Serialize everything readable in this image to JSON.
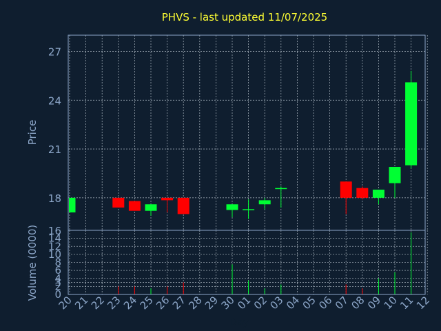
{
  "chart_data": {
    "type": "candlestick",
    "title": "PHVS - last updated 11/07/2025",
    "xlabel": "Day",
    "ylabel": "Price",
    "volume_label": "Volume (0000)",
    "ylim": [
      16,
      28
    ],
    "yticks": [
      16,
      18,
      21,
      24,
      27
    ],
    "volume_ylim": [
      0,
      16
    ],
    "volume_ticks": [
      0,
      2,
      3,
      4,
      6,
      8,
      10,
      12,
      14
    ],
    "x_labels": [
      "20",
      "21",
      "22",
      "23",
      "24",
      "25",
      "26",
      "27",
      "28",
      "29",
      "30",
      "01",
      "02",
      "03",
      "04",
      "05",
      "06",
      "07",
      "08",
      "09",
      "10",
      "11",
      "12"
    ],
    "up_color": "#00ff33",
    "down_color": "#ff0000",
    "background": "#0f1e2f",
    "grid": true,
    "candles": [
      {
        "day": "20",
        "open": 17.1,
        "close": 18.0,
        "high": 18.0,
        "low": 17.1,
        "volume": 0.0
      },
      {
        "day": "23",
        "open": 18.0,
        "close": 17.4,
        "high": 18.0,
        "low": 17.4,
        "volume": 2.0
      },
      {
        "day": "24",
        "open": 17.8,
        "close": 17.2,
        "high": 17.8,
        "low": 17.2,
        "volume": 2.0
      },
      {
        "day": "25",
        "open": 17.2,
        "close": 17.6,
        "high": 17.6,
        "low": 16.9,
        "volume": 1.5
      },
      {
        "day": "26",
        "open": 18.0,
        "close": 17.85,
        "high": 18.0,
        "low": 17.1,
        "volume": 2.0
      },
      {
        "day": "27",
        "open": 18.0,
        "close": 17.0,
        "high": 18.0,
        "low": 17.0,
        "volume": 3.0
      },
      {
        "day": "30",
        "open": 17.25,
        "close": 17.6,
        "high": 17.6,
        "low": 16.8,
        "volume": 7.5
      },
      {
        "day": "01",
        "open": 17.25,
        "close": 17.3,
        "high": 17.9,
        "low": 16.7,
        "volume": 3.5
      },
      {
        "day": "02",
        "open": 17.6,
        "close": 17.85,
        "high": 18.0,
        "low": 17.3,
        "volume": 1.5
      },
      {
        "day": "03",
        "open": 18.55,
        "close": 18.6,
        "high": 18.7,
        "low": 17.4,
        "volume": 2.5
      },
      {
        "day": "07",
        "open": 19.0,
        "close": 18.0,
        "high": 19.0,
        "low": 17.0,
        "volume": 2.5
      },
      {
        "day": "08",
        "open": 18.6,
        "close": 18.0,
        "high": 18.7,
        "low": 17.9,
        "volume": 1.5
      },
      {
        "day": "09",
        "open": 18.0,
        "close": 18.5,
        "high": 18.5,
        "low": 17.6,
        "volume": 4.0
      },
      {
        "day": "10",
        "open": 18.9,
        "close": 19.9,
        "high": 19.9,
        "low": 18.0,
        "volume": 5.5
      },
      {
        "day": "11",
        "open": 20.0,
        "close": 25.1,
        "high": 25.8,
        "low": 19.8,
        "volume": 15.5
      }
    ]
  }
}
